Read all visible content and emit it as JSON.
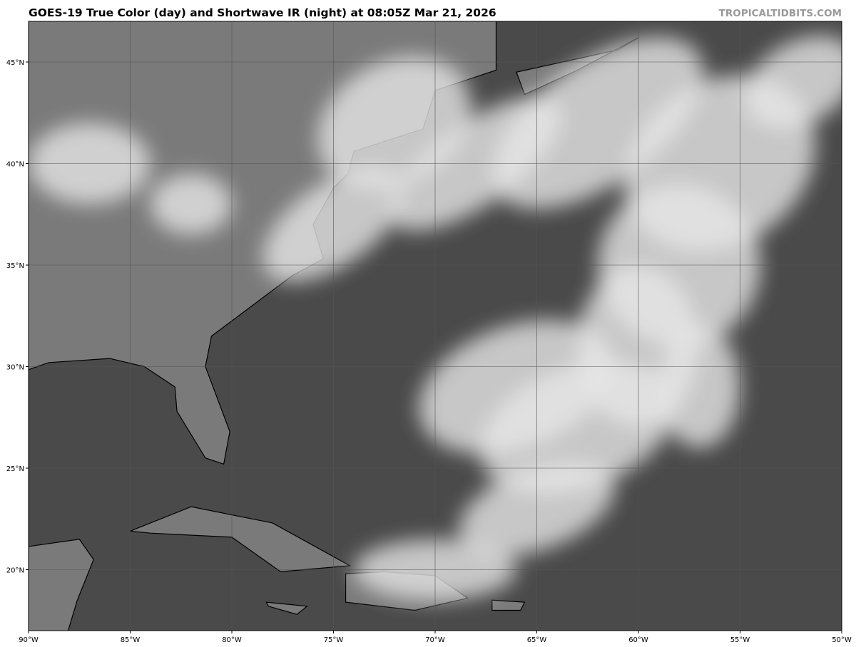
{
  "title": "GOES-19 True Color (day) and Shortwave IR (night) at 08:05Z Mar 21, 2026",
  "watermark": "TROPICALTIDBITS.COM",
  "map": {
    "projection": "equirectangular",
    "lon_range": [
      -90,
      -50
    ],
    "lat_range": [
      17,
      47
    ],
    "grid_step_deg": 5,
    "grid": true,
    "x_tick_labels": [
      "90°W",
      "85°W",
      "80°W",
      "75°W",
      "70°W",
      "65°W",
      "60°W",
      "55°W",
      "50°W"
    ],
    "y_tick_labels": [
      "45°N",
      "40°N",
      "35°N",
      "30°N",
      "25°N",
      "20°N"
    ],
    "colors": {
      "ocean": "#4a4a4a",
      "land": "#7a7a7a",
      "cloud": "#e6e6e6",
      "coastline": "#000000",
      "grid": "#555555"
    }
  }
}
